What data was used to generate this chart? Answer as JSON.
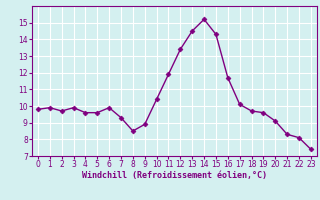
{
  "x": [
    0,
    1,
    2,
    3,
    4,
    5,
    6,
    7,
    8,
    9,
    10,
    11,
    12,
    13,
    14,
    15,
    16,
    17,
    18,
    19,
    20,
    21,
    22,
    23
  ],
  "y": [
    9.8,
    9.9,
    9.7,
    9.9,
    9.6,
    9.6,
    9.9,
    9.3,
    8.5,
    8.9,
    10.4,
    11.9,
    13.4,
    14.5,
    15.2,
    14.3,
    11.7,
    10.1,
    9.7,
    9.6,
    9.1,
    8.3,
    8.1,
    7.4
  ],
  "line_color": "#800080",
  "marker": "D",
  "marker_size": 2.5,
  "line_width": 1.0,
  "xlim": [
    -0.5,
    23.5
  ],
  "ylim": [
    7,
    16
  ],
  "yticks": [
    7,
    8,
    9,
    10,
    11,
    12,
    13,
    14,
    15
  ],
  "xticks": [
    0,
    1,
    2,
    3,
    4,
    5,
    6,
    7,
    8,
    9,
    10,
    11,
    12,
    13,
    14,
    15,
    16,
    17,
    18,
    19,
    20,
    21,
    22,
    23
  ],
  "xlabel": "Windchill (Refroidissement éolien,°C)",
  "background_color": "#d4f0f0",
  "grid_color": "#ffffff",
  "tick_label_color": "#800080",
  "tick_label_size": 5.5,
  "xlabel_size": 6.0,
  "xlabel_color": "#800080",
  "spine_color": "#800080"
}
